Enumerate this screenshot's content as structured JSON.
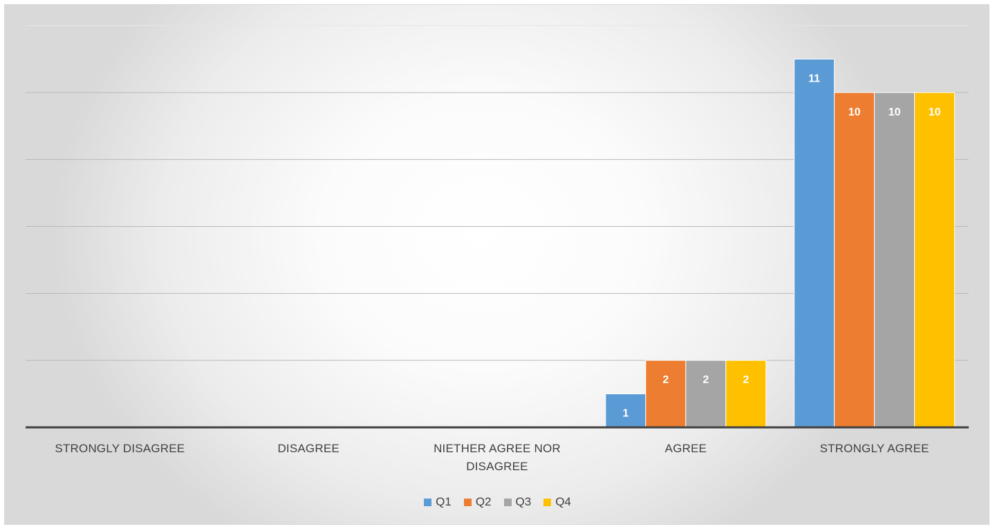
{
  "chart_data": {
    "type": "bar",
    "categories": [
      "STRONGLY DISAGREE",
      "DISAGREE",
      "NIETHER AGREE NOR DISAGREE",
      "AGREE",
      "STRONGLY AGREE"
    ],
    "category_lines": [
      [
        "STRONGLY DISAGREE"
      ],
      [
        "DISAGREE"
      ],
      [
        "NIETHER AGREE NOR",
        "DISAGREE"
      ],
      [
        "AGREE"
      ],
      [
        "STRONGLY AGREE"
      ]
    ],
    "series": [
      {
        "name": "Q1",
        "color": "#5b9bd5",
        "values": [
          0,
          0,
          0,
          1,
          11
        ]
      },
      {
        "name": "Q2",
        "color": "#ed7d31",
        "values": [
          0,
          0,
          0,
          2,
          10
        ]
      },
      {
        "name": "Q3",
        "color": "#a5a5a5",
        "values": [
          0,
          0,
          0,
          2,
          10
        ]
      },
      {
        "name": "Q4",
        "color": "#ffc000",
        "values": [
          0,
          0,
          0,
          2,
          10
        ]
      }
    ],
    "ylim": [
      0,
      12
    ],
    "grid": true,
    "data_labels": true,
    "legend_position": "bottom",
    "title": "",
    "xlabel": "",
    "ylabel": ""
  }
}
